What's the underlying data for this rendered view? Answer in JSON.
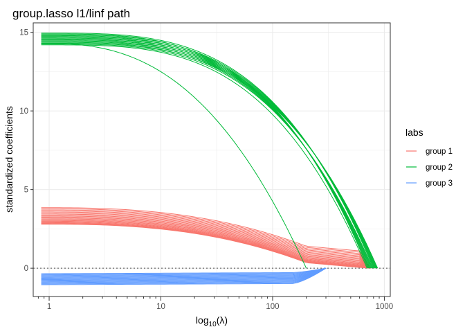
{
  "chart_data": {
    "type": "line",
    "title": "group.lasso l1/linf path",
    "xlabel_base": "log",
    "xlabel_sub": "10",
    "xlabel_arg": "(λ)",
    "ylabel": "standardized coefficients",
    "x_scale": "log10",
    "xlim": [
      0.72,
      1130
    ],
    "ylim": [
      -1.8,
      15.6
    ],
    "x_ticks": [
      1,
      10,
      100,
      1000
    ],
    "x_tick_labels": [
      "1",
      "10",
      "100",
      "1000"
    ],
    "y_ticks": [
      0,
      5,
      10,
      15
    ],
    "y_tick_labels": [
      "0",
      "5",
      "10",
      "15"
    ],
    "grid": true,
    "reference_line": {
      "y": 0,
      "style": "dotted"
    },
    "legend": {
      "title": "labs",
      "placement": "right",
      "entries": [
        {
          "label": "group 1",
          "color": "#F8766D"
        },
        {
          "label": "group 2",
          "color": "#00BA38"
        },
        {
          "label": "group 3",
          "color": "#619CFF"
        }
      ]
    },
    "series": [
      {
        "name": "group 1",
        "color": "#F8766D",
        "count": 20,
        "start_range": [
          2.8,
          3.85
        ],
        "flat_value_range": [
          0.05,
          1.1
        ],
        "end_x": 750
      },
      {
        "name": "group 2",
        "color": "#00BA38",
        "count": 16,
        "start_range": [
          14.2,
          14.95
        ],
        "zero_x_main": [
          700,
          870
        ],
        "zero_x_outlier": 200,
        "outlier_start": 14.3
      },
      {
        "name": "group 3",
        "color": "#619CFF",
        "count": 16,
        "start_range": [
          -1.05,
          -0.35
        ],
        "end_x": 300
      }
    ]
  }
}
